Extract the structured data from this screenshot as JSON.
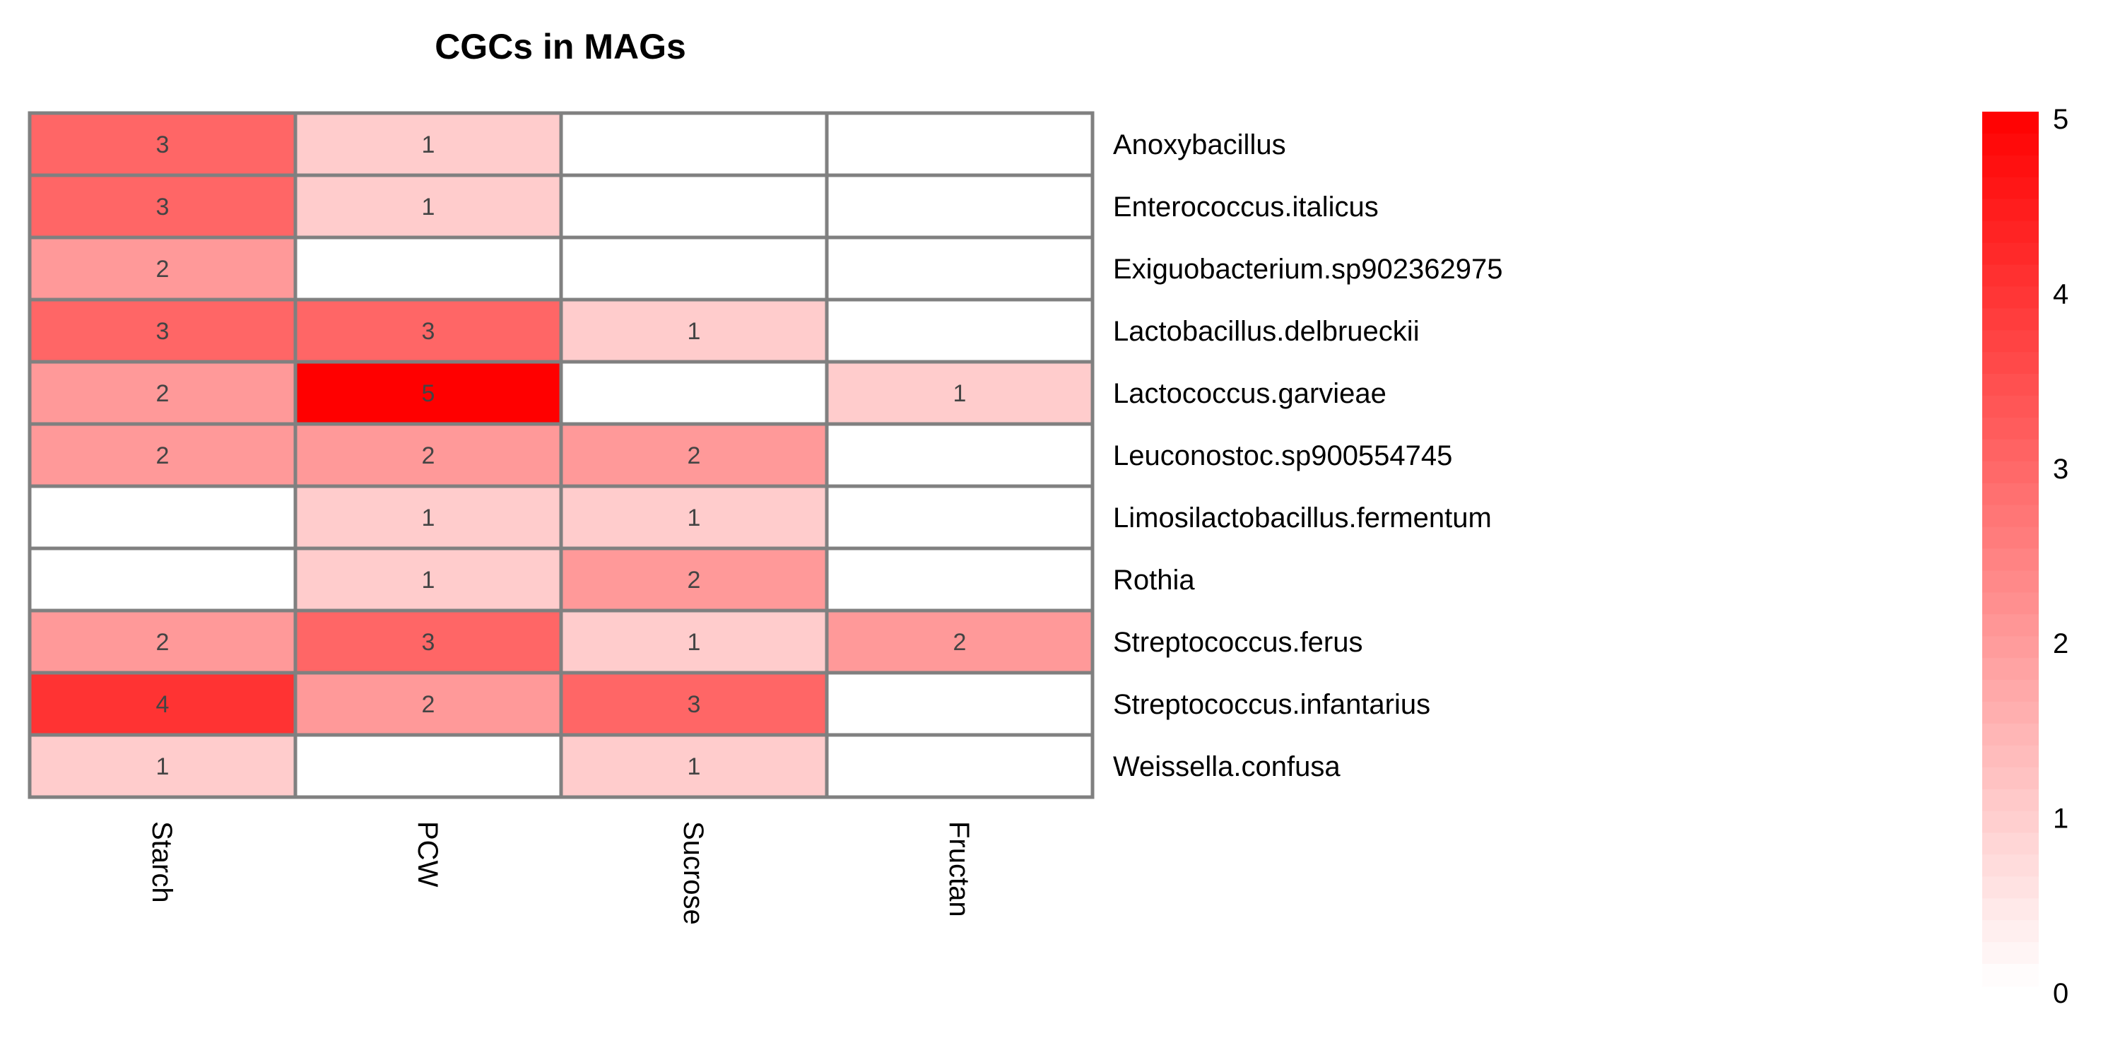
{
  "chart_data": {
    "type": "heatmap",
    "title": "CGCs in MAGs",
    "columns": [
      "Starch",
      "PCW",
      "Sucrose",
      "Fructan"
    ],
    "rows": [
      "Anoxybacillus",
      "Enterococcus.italicus",
      "Exiguobacterium.sp902362975",
      "Lactobacillus.delbrueckii",
      "Lactococcus.garvieae",
      "Leuconostoc.sp900554745",
      "Limosilactobacillus.fermentum",
      "Rothia",
      "Streptococcus.ferus",
      "Streptococcus.infantarius",
      "Weissella.confusa"
    ],
    "values": [
      [
        3,
        1,
        0,
        0
      ],
      [
        3,
        1,
        0,
        0
      ],
      [
        2,
        0,
        0,
        0
      ],
      [
        3,
        3,
        1,
        0
      ],
      [
        2,
        5,
        0,
        1
      ],
      [
        2,
        2,
        2,
        0
      ],
      [
        0,
        1,
        1,
        0
      ],
      [
        0,
        1,
        2,
        0
      ],
      [
        2,
        3,
        1,
        2
      ],
      [
        4,
        2,
        3,
        0
      ],
      [
        1,
        0,
        1,
        0
      ]
    ],
    "show_zero_labels": false,
    "color_scale": {
      "low": "#ffffff",
      "high": "#ff0000",
      "min": 0,
      "max": 5
    },
    "legend": {
      "ticks": [
        0,
        1,
        2,
        3,
        4,
        5
      ],
      "placement": "right"
    },
    "cell_border_color": "#808080"
  }
}
